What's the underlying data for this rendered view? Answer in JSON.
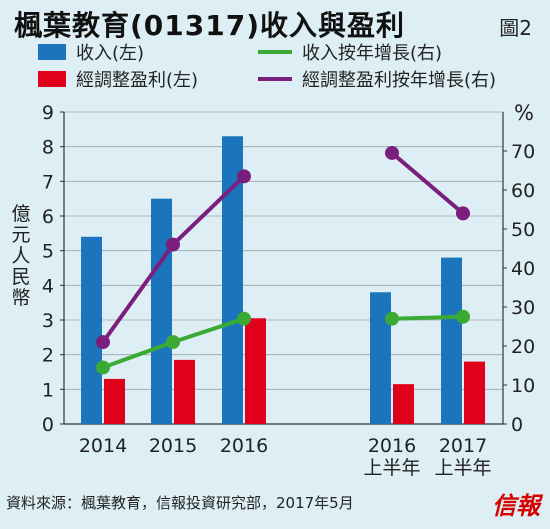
{
  "header": {
    "title": "楓葉教育(01317)收入與盈利",
    "figure_no": "圖2"
  },
  "footer": {
    "source": "資料來源：楓葉教育，信報投資研究部，2017年5月",
    "brand": "信報"
  },
  "colors": {
    "background": "#ddeff4",
    "revenue": "#1a75bc",
    "profit": "#e0001b",
    "revenue_growth": "#3aaa35",
    "profit_growth": "#7b1f7e"
  },
  "chart_data": {
    "type": "bar",
    "categories": [
      "2014",
      "2015",
      "2016",
      "2016\n上半年",
      "2017\n上半年"
    ],
    "ylabel": "億元人民幣",
    "y2label": "%",
    "ylim": [
      0,
      9
    ],
    "y2lim": [
      0,
      80
    ],
    "yticks": [
      0,
      1,
      2,
      3,
      4,
      5,
      6,
      7,
      8,
      9
    ],
    "y2ticks": [
      0,
      10,
      20,
      30,
      40,
      50,
      60,
      70
    ],
    "grid": true,
    "legend_position": "top",
    "series": [
      {
        "name": "收入(左)",
        "type": "bar",
        "axis": "left",
        "values": [
          5.4,
          6.5,
          8.3,
          3.8,
          4.8
        ]
      },
      {
        "name": "經調整盈利(左)",
        "type": "bar",
        "axis": "left",
        "values": [
          1.3,
          1.85,
          3.05,
          1.15,
          1.8
        ]
      },
      {
        "name": "收入按年增長(右)",
        "type": "line",
        "axis": "right",
        "values": [
          14.5,
          21,
          27,
          27,
          27.5
        ]
      },
      {
        "name": "經調整盈利按年增長(右)",
        "type": "line",
        "axis": "right",
        "values": [
          21,
          46,
          63.5,
          69.5,
          54
        ]
      }
    ]
  }
}
